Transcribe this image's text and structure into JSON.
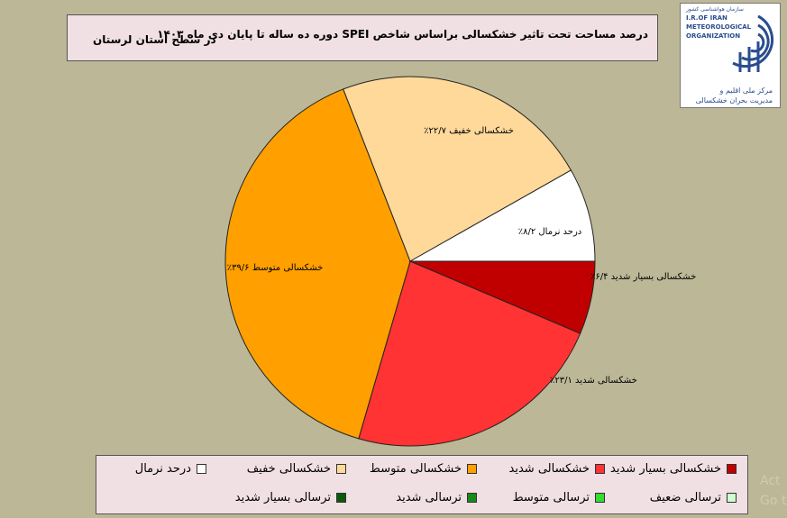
{
  "header": {
    "title": "درصد مساحت تحت تاثیر خشکسالی براساس شاخص SPEI دوره ده ساله تا پایان دی ماه ۱۴۰۳",
    "subtitle": "در سطح استان لرستان"
  },
  "logo": {
    "fa_top": "سازمان هواشناسی کشور",
    "en_line1": "I.R.OF IRAN",
    "en_line2": "METEOROLOGICAL",
    "en_line3": "ORGANIZATION",
    "fa_line1": "مرکز ملی اقلیم و",
    "fa_line2": "مدیریت بحران خشکسالی"
  },
  "chart_data": {
    "type": "pie",
    "title": "درصد مساحت تحت تاثیر خشکسالی براساس شاخص SPEI دوره ده ساله تا پایان دی ماه ۱۴۰۳",
    "subtitle": "در سطح استان لرستان",
    "slices": [
      {
        "name": "خشکسالی بسیار شدید",
        "value": 6.4,
        "label": "خشکسالی بسیار شدید ۶/۴٪",
        "color": "#c00000"
      },
      {
        "name": "خشکسالی شدید",
        "value": 23.1,
        "label": "خشکسالی شدید ۲۳/۱٪",
        "color": "#ff3333"
      },
      {
        "name": "خشکسالی متوسط",
        "value": 39.6,
        "label": "خشکسالی متوسط ۳۹/۶٪",
        "color": "#ffa000"
      },
      {
        "name": "خشکسالی خفیف",
        "value": 22.7,
        "label": "خشکسالی خفیف ۲۲/۷٪",
        "color": "#ffd99a"
      },
      {
        "name": "درحد نرمال",
        "value": 8.2,
        "label": "درحد نرمال ۸/۲٪",
        "color": "#ffffff"
      }
    ],
    "legend": [
      {
        "label": "خشکسالی بسیار شدید",
        "color": "#c00000"
      },
      {
        "label": "خشکسالی شدید",
        "color": "#ff3333"
      },
      {
        "label": "خشکسالی متوسط",
        "color": "#ffa000"
      },
      {
        "label": "خشکسالی خفیف",
        "color": "#ffd99a"
      },
      {
        "label": "درحد نرمال",
        "color": "#ffffff"
      },
      {
        "label": "ترسالی ضعیف",
        "color": "#ccffcc"
      },
      {
        "label": "ترسالی متوسط",
        "color": "#33dd33"
      },
      {
        "label": "ترسالی شدید",
        "color": "#1a8a1a"
      },
      {
        "label": "ترسالی بسیار شدید",
        "color": "#0a5a0a"
      }
    ],
    "legend_position": "bottom"
  },
  "watermark": {
    "line1": "Act",
    "line2": "Go t"
  }
}
